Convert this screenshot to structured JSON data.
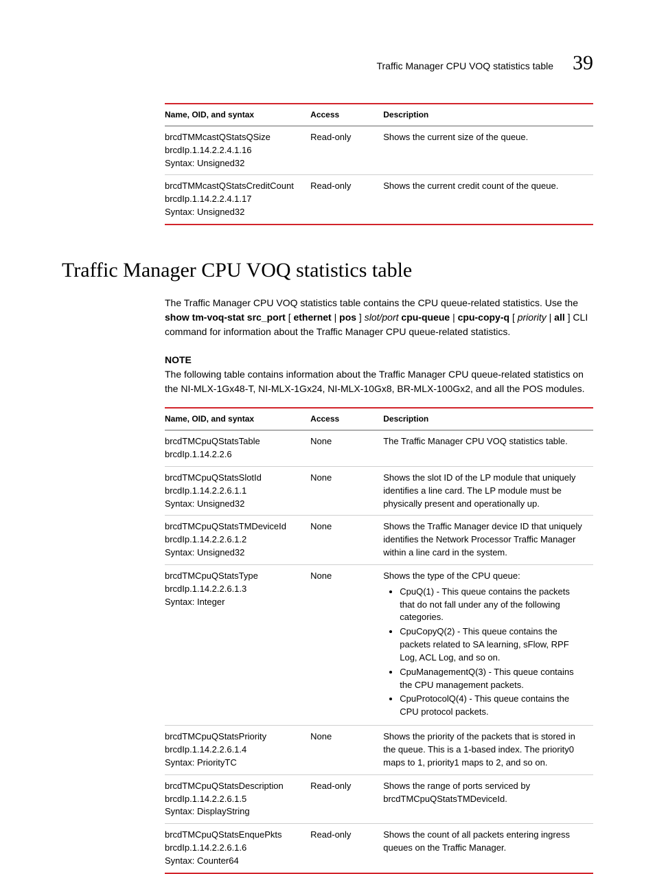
{
  "colors": {
    "table_accent": "#d2232a",
    "row_divider": "#cfcfcf",
    "header_divider": "#666666",
    "text": "#000000",
    "background": "#ffffff"
  },
  "header": {
    "running_title": "Traffic Manager CPU VOQ statistics table",
    "chapter_number": "39"
  },
  "table1": {
    "head": {
      "c0": "Name, OID, and syntax",
      "c1": "Access",
      "c2": "Description"
    },
    "rows": {
      "0": {
        "name": "brcdTMMcastQStatsQSize",
        "oid": "brcdIp.1.14.2.2.4.1.16",
        "syntax": "Syntax: Unsigned32",
        "access": "Read-only",
        "desc": "Shows the current size of the queue."
      },
      "1": {
        "name": "brcdTMMcastQStatsCreditCount",
        "oid": "brcdIp.1.14.2.2.4.1.17",
        "syntax": "Syntax: Unsigned32",
        "access": "Read-only",
        "desc": "Shows the current credit count of the queue."
      }
    }
  },
  "section": {
    "heading": "Traffic Manager CPU VOQ statistics table",
    "intro": {
      "p1_pre": "The Traffic Manager CPU VOQ statistics table contains the CPU queue-related statistics. Use the ",
      "cmd_b1": "show tm-voq-stat src_port",
      "cmd_plain1": " [",
      "cmd_b2": "ethernet",
      "cmd_plain2": " | ",
      "cmd_b3": "pos",
      "cmd_plain3": "] ",
      "cmd_i1": "slot/port",
      "cmd_plain4": " ",
      "cmd_b4": "cpu-queue",
      "cmd_plain5": " | ",
      "cmd_b5": "cpu-copy-q",
      "cmd_plain6": " [",
      "cmd_i2": "priority",
      "cmd_plain7": " | ",
      "cmd_b6": "all",
      "cmd_plain8": "] CLI command for information about the Traffic Manager CPU queue-related statistics."
    },
    "note_head": "NOTE",
    "note_body": "The following table contains information about the Traffic Manager CPU queue-related statistics on the NI-MLX-1Gx48-T, NI-MLX-1Gx24, NI-MLX-10Gx8, BR-MLX-100Gx2, and all the POS modules."
  },
  "table2": {
    "head": {
      "c0": "Name, OID, and syntax",
      "c1": "Access",
      "c2": "Description"
    },
    "rows": {
      "0": {
        "name": "brcdTMCpuQStatsTable",
        "oid": "brcdIp.1.14.2.2.6",
        "access": "None",
        "desc": "The Traffic Manager CPU VOQ statistics table."
      },
      "1": {
        "name": "brcdTMCpuQStatsSlotId",
        "oid": "brcdIp.1.14.2.2.6.1.1",
        "syntax": "Syntax: Unsigned32",
        "access": "None",
        "desc": "Shows the slot ID of the LP module that uniquely identifies a line card. The LP module must be physically present and operationally up."
      },
      "2": {
        "name": "brcdTMCpuQStatsTMDeviceId",
        "oid": "brcdIp.1.14.2.2.6.1.2",
        "syntax": "Syntax: Unsigned32",
        "access": "None",
        "desc": "Shows the Traffic Manager device ID that uniquely identifies the Network Processor Traffic Manager within a line card in the system."
      },
      "3": {
        "name": "brcdTMCpuQStatsType",
        "oid": "brcdIp.1.14.2.2.6.1.3",
        "syntax": "Syntax: Integer",
        "access": "None",
        "desc_lead": "Shows the type of the CPU queue:",
        "bullets": {
          "0": "CpuQ(1) - This queue contains the packets that do not fall under any of the following categories.",
          "1": "CpuCopyQ(2) - This queue contains the packets related to SA learning, sFlow, RPF Log, ACL Log, and so on.",
          "2": "CpuManagementQ(3) - This queue contains the CPU management packets.",
          "3": "CpuProtocolQ(4) - This queue contains the CPU protocol packets."
        }
      },
      "4": {
        "name": "brcdTMCpuQStatsPriority",
        "oid": "brcdIp.1.14.2.2.6.1.4",
        "syntax": "Syntax: PriorityTC",
        "access": "None",
        "desc": "Shows the priority of the packets that is stored in the queue. This is a 1-based index. The priority0 maps to 1, priority1 maps to 2, and so on."
      },
      "5": {
        "name": "brcdTMCpuQStatsDescription",
        "oid": "brcdIp.1.14.2.2.6.1.5",
        "syntax": "Syntax: DisplayString",
        "access": "Read-only",
        "desc": "Shows the range of ports serviced by brcdTMCpuQStatsTMDeviceId."
      },
      "6": {
        "name": "brcdTMCpuQStatsEnquePkts",
        "oid": "brcdIp.1.14.2.2.6.1.6",
        "syntax": "Syntax: Counter64",
        "access": "Read-only",
        "desc": "Shows the count of all packets entering ingress queues on the Traffic Manager."
      }
    }
  }
}
